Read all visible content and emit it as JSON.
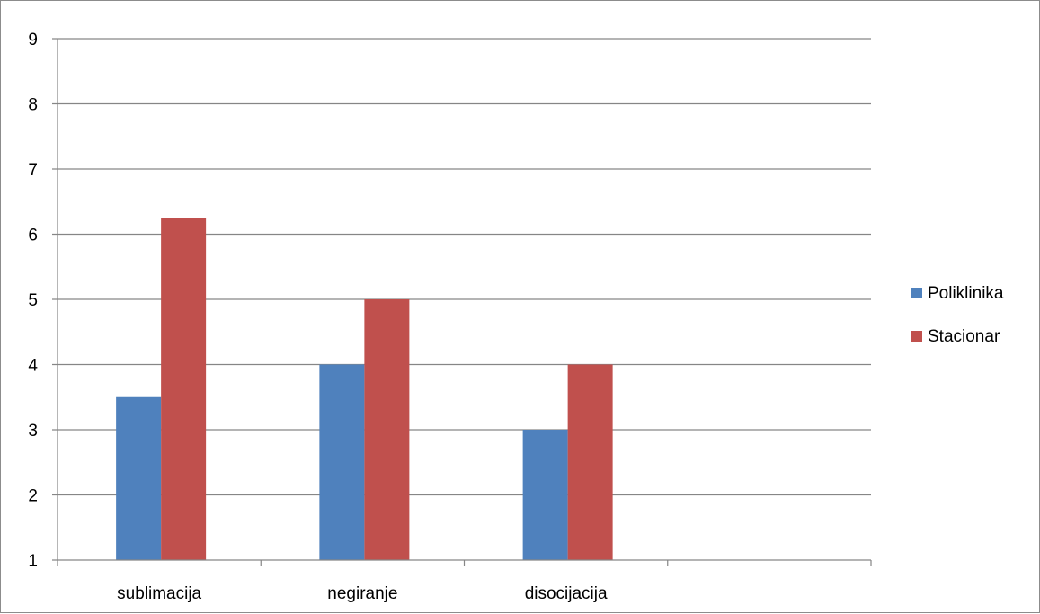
{
  "chart_data": {
    "type": "bar",
    "title": "",
    "xlabel": "",
    "ylabel": "",
    "categories": [
      "sublimacija",
      "negiranje",
      "disocijacija",
      ""
    ],
    "series": [
      {
        "name": "Poliklinika",
        "values": [
          3.5,
          4,
          3,
          null
        ],
        "color": "#4f81bd"
      },
      {
        "name": "Stacionar",
        "values": [
          6.25,
          5,
          4,
          null
        ],
        "color": "#c0504d"
      }
    ],
    "ylim": [
      1,
      9
    ],
    "yticks": [
      1,
      2,
      3,
      4,
      5,
      6,
      7,
      8,
      9
    ],
    "grid": true,
    "legend_position": "right"
  }
}
